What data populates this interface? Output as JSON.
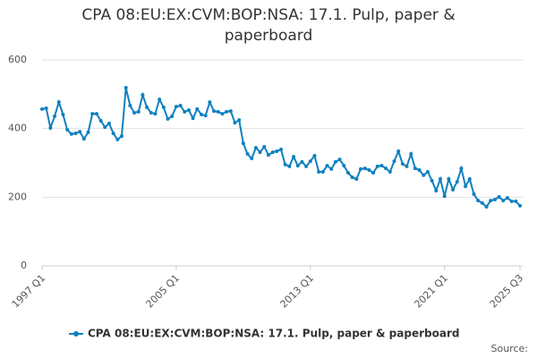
{
  "chart_data": {
    "type": "line",
    "title": "CPA 08:EU:EX:CVM:BOP:NSA: 17.1. Pulp, paper & paperboard",
    "source": "Source:",
    "categories": [
      "1997 Q1",
      null,
      null,
      null,
      null,
      null,
      null,
      null,
      null,
      null,
      null,
      null,
      null,
      null,
      null,
      null,
      null,
      null,
      null,
      null,
      null,
      null,
      null,
      null,
      null,
      null,
      null,
      null,
      null,
      null,
      null,
      null,
      "2005 Q1",
      null,
      null,
      null,
      null,
      null,
      null,
      null,
      null,
      null,
      null,
      null,
      null,
      null,
      null,
      null,
      null,
      null,
      null,
      null,
      null,
      null,
      null,
      null,
      null,
      null,
      null,
      null,
      null,
      null,
      null,
      null,
      "2013 Q1",
      null,
      null,
      null,
      null,
      null,
      null,
      null,
      null,
      null,
      null,
      null,
      null,
      null,
      null,
      null,
      null,
      null,
      null,
      null,
      null,
      null,
      null,
      null,
      null,
      null,
      null,
      null,
      null,
      null,
      null,
      null,
      "2021 Q1",
      null,
      null,
      null,
      null,
      null,
      null,
      null,
      null,
      null,
      null,
      null,
      null,
      null,
      null,
      null,
      null,
      null,
      "2025 Q3"
    ],
    "series": [
      {
        "name": "CPA 08:EU:EX:CVM:BOP:NSA: 17.1. Pulp, paper & paperboard",
        "color": "#0f80c0",
        "values": [
          457,
          459,
          402,
          436,
          477,
          441,
          397,
          384,
          386,
          391,
          370,
          389,
          443,
          443,
          423,
          404,
          415,
          386,
          368,
          378,
          519,
          467,
          446,
          449,
          498,
          462,
          446,
          443,
          485,
          462,
          428,
          436,
          464,
          467,
          449,
          454,
          430,
          457,
          441,
          438,
          477,
          451,
          449,
          443,
          449,
          451,
          417,
          425,
          357,
          326,
          313,
          344,
          331,
          347,
          323,
          331,
          334,
          339,
          295,
          290,
          318,
          292,
          303,
          290,
          305,
          321,
          274,
          274,
          292,
          282,
          303,
          310,
          292,
          271,
          258,
          253,
          282,
          284,
          279,
          271,
          290,
          292,
          284,
          274,
          305,
          334,
          297,
          290,
          326,
          284,
          279,
          264,
          274,
          248,
          219,
          253,
          203,
          253,
          222,
          245,
          284,
          232,
          253,
          209,
          190,
          183,
          172,
          190,
          193,
          201,
          190,
          198,
          188,
          188,
          175
        ]
      }
    ],
    "ylim": [
      0,
      600
    ],
    "yticks": [
      0,
      200,
      400,
      600
    ],
    "grid": true,
    "legend": "bottom"
  }
}
